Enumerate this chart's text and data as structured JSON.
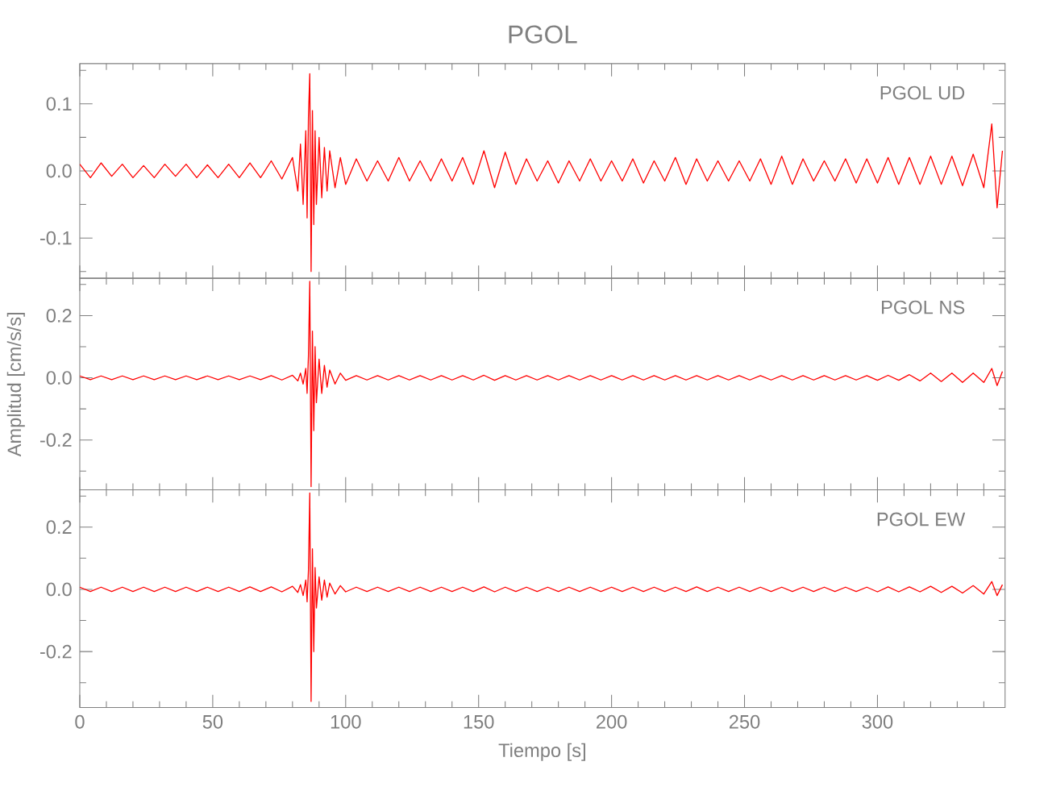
{
  "chart_data": [
    {
      "type": "line",
      "title": "PGOL",
      "annotations": [
        "PGOL   UD"
      ],
      "tick_labels": "y",
      "x": [
        0,
        4,
        8,
        12,
        16,
        20,
        24,
        28,
        32,
        36,
        40,
        44,
        48,
        52,
        56,
        60,
        64,
        68,
        72,
        76,
        80,
        82,
        83,
        84,
        85,
        85.5,
        86,
        86.5,
        87,
        87.5,
        88,
        88.5,
        89,
        90,
        91,
        92,
        93,
        94,
        96,
        98,
        100,
        104,
        108,
        112,
        116,
        120,
        124,
        128,
        132,
        136,
        140,
        144,
        148,
        152,
        156,
        160,
        164,
        168,
        172,
        176,
        180,
        184,
        188,
        192,
        196,
        200,
        204,
        208,
        212,
        216,
        220,
        224,
        228,
        232,
        236,
        240,
        244,
        248,
        252,
        256,
        260,
        264,
        268,
        272,
        276,
        280,
        284,
        288,
        292,
        296,
        300,
        304,
        308,
        312,
        316,
        320,
        324,
        328,
        332,
        336,
        340,
        343,
        345,
        347
      ],
      "series": [
        {
          "color": "#ff0000",
          "values": [
            0.01,
            -0.01,
            0.012,
            -0.008,
            0.01,
            -0.01,
            0.008,
            -0.01,
            0.01,
            -0.008,
            0.01,
            -0.01,
            0.009,
            -0.01,
            0.01,
            -0.01,
            0.012,
            -0.01,
            0.015,
            -0.012,
            0.02,
            -0.03,
            0.04,
            -0.05,
            0.06,
            -0.07,
            0.08,
            0.145,
            -0.15,
            0.09,
            -0.08,
            0.06,
            -0.05,
            0.05,
            -0.04,
            0.035,
            -0.03,
            0.03,
            -0.025,
            0.02,
            -0.02,
            0.018,
            -0.015,
            0.015,
            -0.015,
            0.02,
            -0.015,
            0.015,
            -0.015,
            0.018,
            -0.015,
            0.02,
            -0.02,
            0.03,
            -0.025,
            0.028,
            -0.02,
            0.018,
            -0.015,
            0.015,
            -0.018,
            0.015,
            -0.015,
            0.018,
            -0.015,
            0.015,
            -0.015,
            0.018,
            -0.018,
            0.015,
            -0.015,
            0.02,
            -0.02,
            0.018,
            -0.015,
            0.015,
            -0.015,
            0.015,
            -0.015,
            0.018,
            -0.02,
            0.022,
            -0.02,
            0.018,
            -0.015,
            0.015,
            -0.015,
            0.018,
            -0.018,
            0.018,
            -0.018,
            0.02,
            -0.02,
            0.02,
            -0.02,
            0.022,
            -0.02,
            0.022,
            -0.022,
            0.025,
            -0.025,
            0.07,
            -0.055,
            0.03
          ]
        }
      ],
      "xlim": [
        0,
        348
      ],
      "ylim": [
        -0.16,
        0.16
      ],
      "xticks": [
        0,
        {
          "value": 10,
          "label": null
        },
        {
          "value": 20,
          "label": null
        },
        {
          "value": 30,
          "label": null
        },
        {
          "value": 40,
          "label": null
        },
        50,
        {
          "value": 60,
          "label": null
        },
        {
          "value": 70,
          "label": null
        },
        {
          "value": 80,
          "label": null
        },
        {
          "value": 90,
          "label": null
        },
        100,
        {
          "value": 110,
          "label": null
        },
        {
          "value": 120,
          "label": null
        },
        {
          "value": 130,
          "label": null
        },
        {
          "value": 140,
          "label": null
        },
        150,
        {
          "value": 160,
          "label": null
        },
        {
          "value": 170,
          "label": null
        },
        {
          "value": 180,
          "label": null
        },
        {
          "value": 190,
          "label": null
        },
        200,
        {
          "value": 210,
          "label": null
        },
        {
          "value": 220,
          "label": null
        },
        {
          "value": 230,
          "label": null
        },
        {
          "value": 240,
          "label": null
        },
        250,
        {
          "value": 260,
          "label": null
        },
        {
          "value": 270,
          "label": null
        },
        {
          "value": 280,
          "label": null
        },
        {
          "value": 290,
          "label": null
        },
        300,
        {
          "value": 310,
          "label": null
        },
        {
          "value": 320,
          "label": null
        },
        {
          "value": 330,
          "label": null
        },
        {
          "value": 340,
          "label": null
        }
      ],
      "yticks": [
        {
          "value": -0.15,
          "label": null
        },
        -0.1,
        {
          "value": -0.05,
          "label": null
        },
        {
          "value": 0,
          "label": "0.0"
        },
        {
          "value": 0.05,
          "label": null
        },
        0.1,
        {
          "value": 0.15,
          "label": null
        }
      ]
    },
    {
      "type": "line",
      "ylabel": "Amplitud [cm/s/s]",
      "annotations": [
        "PGOL   NS"
      ],
      "tick_labels": "y",
      "x": [
        0,
        4,
        8,
        12,
        16,
        20,
        24,
        28,
        32,
        36,
        40,
        44,
        48,
        52,
        56,
        60,
        64,
        68,
        72,
        76,
        80,
        82,
        83,
        84,
        85,
        85.5,
        86,
        86.5,
        87,
        87.5,
        88,
        88.5,
        89,
        90,
        91,
        92,
        93,
        94,
        96,
        98,
        100,
        104,
        108,
        112,
        116,
        120,
        124,
        128,
        132,
        136,
        140,
        144,
        148,
        152,
        156,
        160,
        164,
        168,
        172,
        176,
        180,
        184,
        188,
        192,
        196,
        200,
        204,
        208,
        212,
        216,
        220,
        224,
        228,
        232,
        236,
        240,
        244,
        248,
        252,
        256,
        260,
        264,
        268,
        272,
        276,
        280,
        284,
        288,
        292,
        296,
        300,
        304,
        308,
        312,
        316,
        320,
        324,
        328,
        332,
        336,
        340,
        343,
        345,
        347
      ],
      "series": [
        {
          "color": "#ff0000",
          "values": [
            0.006,
            -0.006,
            0.006,
            -0.006,
            0.006,
            -0.006,
            0.006,
            -0.006,
            0.006,
            -0.006,
            0.006,
            -0.006,
            0.006,
            -0.006,
            0.006,
            -0.006,
            0.006,
            -0.006,
            0.007,
            -0.007,
            0.008,
            -0.01,
            0.015,
            -0.02,
            0.03,
            -0.05,
            0.07,
            0.31,
            -0.35,
            0.15,
            -0.17,
            0.1,
            -0.08,
            0.06,
            -0.05,
            0.04,
            -0.03,
            0.025,
            -0.02,
            0.015,
            -0.008,
            0.007,
            -0.007,
            0.007,
            -0.007,
            0.007,
            -0.007,
            0.007,
            -0.007,
            0.007,
            -0.007,
            0.007,
            -0.007,
            0.008,
            -0.008,
            0.007,
            -0.007,
            0.007,
            -0.007,
            0.007,
            -0.007,
            0.007,
            -0.007,
            0.007,
            -0.007,
            0.007,
            -0.007,
            0.007,
            -0.007,
            0.007,
            -0.007,
            0.007,
            -0.007,
            0.007,
            -0.007,
            0.007,
            -0.007,
            0.007,
            -0.007,
            0.007,
            -0.007,
            0.007,
            -0.007,
            0.007,
            -0.007,
            0.007,
            -0.007,
            0.007,
            -0.007,
            0.007,
            -0.008,
            0.008,
            -0.008,
            0.01,
            -0.01,
            0.015,
            -0.012,
            0.015,
            -0.015,
            0.015,
            -0.015,
            0.03,
            -0.025,
            0.02
          ]
        }
      ],
      "xlim": [
        0,
        348
      ],
      "ylim": [
        -0.36,
        0.32
      ],
      "xticks": [
        0,
        {
          "value": 10,
          "label": null
        },
        {
          "value": 20,
          "label": null
        },
        {
          "value": 30,
          "label": null
        },
        {
          "value": 40,
          "label": null
        },
        50,
        {
          "value": 60,
          "label": null
        },
        {
          "value": 70,
          "label": null
        },
        {
          "value": 80,
          "label": null
        },
        {
          "value": 90,
          "label": null
        },
        100,
        {
          "value": 110,
          "label": null
        },
        {
          "value": 120,
          "label": null
        },
        {
          "value": 130,
          "label": null
        },
        {
          "value": 140,
          "label": null
        },
        150,
        {
          "value": 160,
          "label": null
        },
        {
          "value": 170,
          "label": null
        },
        {
          "value": 180,
          "label": null
        },
        {
          "value": 190,
          "label": null
        },
        200,
        {
          "value": 210,
          "label": null
        },
        {
          "value": 220,
          "label": null
        },
        {
          "value": 230,
          "label": null
        },
        {
          "value": 240,
          "label": null
        },
        250,
        {
          "value": 260,
          "label": null
        },
        {
          "value": 270,
          "label": null
        },
        {
          "value": 280,
          "label": null
        },
        {
          "value": 290,
          "label": null
        },
        300,
        {
          "value": 310,
          "label": null
        },
        {
          "value": 320,
          "label": null
        },
        {
          "value": 330,
          "label": null
        },
        {
          "value": 340,
          "label": null
        }
      ],
      "yticks": [
        {
          "value": -0.3,
          "label": null
        },
        -0.2,
        {
          "value": -0.1,
          "label": null
        },
        {
          "value": 0,
          "label": "0.0"
        },
        {
          "value": 0.1,
          "label": null
        },
        0.2,
        {
          "value": 0.3,
          "label": null
        }
      ]
    },
    {
      "type": "line",
      "xlabel": "Tiempo [s]",
      "annotations": [
        "PGOL   EW"
      ],
      "x": [
        0,
        4,
        8,
        12,
        16,
        20,
        24,
        28,
        32,
        36,
        40,
        44,
        48,
        52,
        56,
        60,
        64,
        68,
        72,
        76,
        80,
        82,
        83,
        84,
        85,
        85.5,
        86,
        86.5,
        87,
        87.5,
        88,
        88.5,
        89,
        90,
        91,
        92,
        93,
        94,
        96,
        98,
        100,
        104,
        108,
        112,
        116,
        120,
        124,
        128,
        132,
        136,
        140,
        144,
        148,
        152,
        156,
        160,
        164,
        168,
        172,
        176,
        180,
        184,
        188,
        192,
        196,
        200,
        204,
        208,
        212,
        216,
        220,
        224,
        228,
        232,
        236,
        240,
        244,
        248,
        252,
        256,
        260,
        264,
        268,
        272,
        276,
        280,
        284,
        288,
        292,
        296,
        300,
        304,
        308,
        312,
        316,
        320,
        324,
        328,
        332,
        336,
        340,
        343,
        345,
        347
      ],
      "series": [
        {
          "color": "#ff0000",
          "values": [
            0.007,
            -0.007,
            0.007,
            -0.007,
            0.007,
            -0.007,
            0.007,
            -0.007,
            0.007,
            -0.007,
            0.007,
            -0.007,
            0.007,
            -0.007,
            0.007,
            -0.007,
            0.008,
            -0.007,
            0.008,
            -0.008,
            0.01,
            -0.01,
            0.015,
            -0.02,
            0.03,
            -0.04,
            0.06,
            0.31,
            -0.36,
            0.13,
            -0.2,
            0.07,
            -0.06,
            0.04,
            -0.035,
            0.03,
            -0.025,
            0.02,
            -0.015,
            0.012,
            -0.008,
            0.007,
            -0.007,
            0.007,
            -0.007,
            0.007,
            -0.007,
            0.007,
            -0.007,
            0.007,
            -0.007,
            0.007,
            -0.007,
            0.008,
            -0.008,
            0.007,
            -0.007,
            0.007,
            -0.007,
            0.007,
            -0.007,
            0.007,
            -0.007,
            0.007,
            -0.007,
            0.007,
            -0.007,
            0.007,
            -0.007,
            0.007,
            -0.007,
            0.007,
            -0.007,
            0.008,
            -0.007,
            0.007,
            -0.007,
            0.007,
            -0.007,
            0.007,
            -0.007,
            0.007,
            -0.007,
            0.007,
            -0.007,
            0.007,
            -0.007,
            0.007,
            -0.007,
            0.007,
            -0.008,
            0.008,
            -0.008,
            0.008,
            -0.008,
            0.01,
            -0.01,
            0.01,
            -0.012,
            0.012,
            -0.015,
            0.025,
            -0.02,
            0.015
          ]
        }
      ],
      "xlim": [
        0,
        348
      ],
      "ylim": [
        -0.38,
        0.32
      ],
      "xticks": [
        0,
        {
          "value": 10,
          "label": null
        },
        {
          "value": 20,
          "label": null
        },
        {
          "value": 30,
          "label": null
        },
        {
          "value": 40,
          "label": null
        },
        50,
        {
          "value": 60,
          "label": null
        },
        {
          "value": 70,
          "label": null
        },
        {
          "value": 80,
          "label": null
        },
        {
          "value": 90,
          "label": null
        },
        100,
        {
          "value": 110,
          "label": null
        },
        {
          "value": 120,
          "label": null
        },
        {
          "value": 130,
          "label": null
        },
        {
          "value": 140,
          "label": null
        },
        150,
        {
          "value": 160,
          "label": null
        },
        {
          "value": 170,
          "label": null
        },
        {
          "value": 180,
          "label": null
        },
        {
          "value": 190,
          "label": null
        },
        200,
        {
          "value": 210,
          "label": null
        },
        {
          "value": 220,
          "label": null
        },
        {
          "value": 230,
          "label": null
        },
        {
          "value": 240,
          "label": null
        },
        250,
        {
          "value": 260,
          "label": null
        },
        {
          "value": 270,
          "label": null
        },
        {
          "value": 280,
          "label": null
        },
        {
          "value": 290,
          "label": null
        },
        300,
        {
          "value": 310,
          "label": null
        },
        {
          "value": 320,
          "label": null
        },
        {
          "value": 330,
          "label": null
        },
        {
          "value": 340,
          "label": null
        }
      ],
      "yticks": [
        {
          "value": -0.3,
          "label": null
        },
        -0.2,
        {
          "value": -0.1,
          "label": null
        },
        {
          "value": 0,
          "label": "0.0"
        },
        {
          "value": 0.1,
          "label": null
        },
        0.2,
        {
          "value": 0.3,
          "label": null
        }
      ]
    }
  ]
}
